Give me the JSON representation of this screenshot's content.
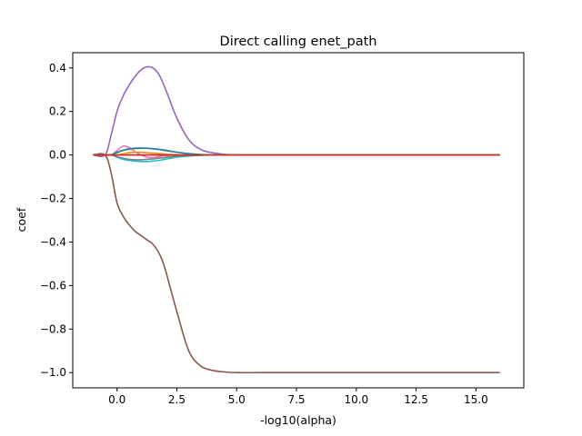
{
  "chart_data": {
    "type": "line",
    "title": "Direct calling enet_path",
    "xlabel": "-log10(alpha)",
    "ylabel": "coef",
    "xlim": [
      -1.85,
      17.0
    ],
    "ylim": [
      -1.07,
      0.47
    ],
    "xticks": [
      0,
      2.5,
      5,
      7.5,
      10,
      12.5,
      15
    ],
    "xtick_labels": [
      "0.0",
      "2.5",
      "5.0",
      "7.5",
      "10.0",
      "12.5",
      "15.0"
    ],
    "yticks": [
      -1.0,
      -0.8,
      -0.6,
      -0.4,
      -0.2,
      0.0,
      0.2,
      0.4
    ],
    "ytick_labels": [
      "−1.0",
      "−0.8",
      "−0.6",
      "−0.4",
      "−0.2",
      "0.0",
      "0.2",
      "0.4"
    ],
    "grid": false,
    "x": [
      -1.0,
      -0.5,
      -0.25,
      0.0,
      0.25,
      0.5,
      0.75,
      1.0,
      1.25,
      1.5,
      1.75,
      2.0,
      2.5,
      3.0,
      3.5,
      4.0,
      4.5,
      5.0,
      6.0,
      8.0,
      10.0,
      12.0,
      14.0,
      16.0
    ],
    "series": [
      {
        "color": "#9467bd",
        "values": [
          0.0,
          0.0,
          0.09,
          0.2,
          0.27,
          0.32,
          0.36,
          0.39,
          0.405,
          0.4,
          0.37,
          0.31,
          0.17,
          0.07,
          0.025,
          0.01,
          0.003,
          0.0,
          0.0,
          0.0,
          0.0,
          0.0,
          0.0,
          0.0
        ]
      },
      {
        "color": "#8c564b",
        "values": [
          0.0,
          0.0,
          -0.08,
          -0.22,
          -0.28,
          -0.32,
          -0.35,
          -0.37,
          -0.39,
          -0.41,
          -0.45,
          -0.52,
          -0.72,
          -0.9,
          -0.97,
          -0.99,
          -0.997,
          -1.0,
          -1.0,
          -1.0,
          -1.0,
          -1.0,
          -1.0,
          -1.0
        ]
      },
      {
        "color": "#e377c2",
        "values": [
          0.0,
          0.0,
          0.0,
          0.02,
          0.04,
          0.035,
          0.015,
          0.0,
          -0.01,
          -0.012,
          -0.008,
          -0.004,
          0.0,
          0.0,
          0.0,
          0.0,
          0.0,
          0.0,
          0.0,
          0.0,
          0.0,
          0.0,
          0.0,
          0.0
        ]
      },
      {
        "color": "#17becf",
        "values": [
          0.0,
          0.0,
          0.0,
          -0.01,
          -0.02,
          -0.025,
          -0.028,
          -0.03,
          -0.03,
          -0.028,
          -0.025,
          -0.02,
          -0.01,
          -0.005,
          -0.002,
          0.0,
          0.0,
          0.0,
          0.0,
          0.0,
          0.0,
          0.0,
          0.0,
          0.0
        ]
      },
      {
        "color": "#bcbd22",
        "values": [
          0.0,
          0.0,
          0.0,
          0.01,
          0.02,
          0.025,
          0.028,
          0.03,
          0.03,
          0.028,
          0.025,
          0.02,
          0.012,
          0.006,
          0.002,
          0.0,
          0.0,
          0.0,
          0.0,
          0.0,
          0.0,
          0.0,
          0.0,
          0.0
        ]
      },
      {
        "color": "#7f7f7f",
        "values": [
          0.0,
          0.0,
          0.0,
          -0.008,
          -0.015,
          -0.02,
          -0.022,
          -0.022,
          -0.02,
          -0.018,
          -0.015,
          -0.012,
          -0.006,
          -0.002,
          0.0,
          0.0,
          0.0,
          0.0,
          0.0,
          0.0,
          0.0,
          0.0,
          0.0,
          0.0
        ]
      },
      {
        "color": "#1f77b4",
        "values": [
          0.0,
          0.0,
          0.0,
          0.012,
          0.022,
          0.028,
          0.031,
          0.032,
          0.031,
          0.029,
          0.026,
          0.022,
          0.013,
          0.006,
          0.002,
          0.0,
          0.0,
          0.0,
          0.0,
          0.0,
          0.0,
          0.0,
          0.0,
          0.0
        ]
      },
      {
        "color": "#ff7f0e",
        "values": [
          0.0,
          0.0,
          0.0,
          0.0,
          0.005,
          0.01,
          0.012,
          0.012,
          0.01,
          0.008,
          0.006,
          0.004,
          0.001,
          0.0,
          0.0,
          0.0,
          0.0,
          0.0,
          0.0,
          0.0,
          0.0,
          0.0,
          0.0,
          0.0
        ]
      },
      {
        "color": "#2ca02c",
        "values": [
          0.0,
          0.0,
          0.0,
          0.0,
          0.0,
          0.0,
          0.0,
          0.0,
          0.0,
          0.0,
          0.0,
          0.0,
          0.0,
          0.0,
          0.0,
          0.0,
          0.0,
          0.0,
          0.0,
          0.0,
          0.0,
          0.0,
          0.0,
          0.0
        ]
      },
      {
        "color": "#d62728",
        "values": [
          0.0,
          0.0,
          0.0,
          0.0,
          0.0,
          0.0,
          0.0,
          0.0,
          0.0,
          0.0,
          0.0,
          0.0,
          0.0,
          0.0,
          0.0,
          0.0,
          0.0,
          0.0,
          0.0,
          0.0,
          0.0,
          0.0,
          0.0,
          0.0
        ]
      }
    ]
  }
}
